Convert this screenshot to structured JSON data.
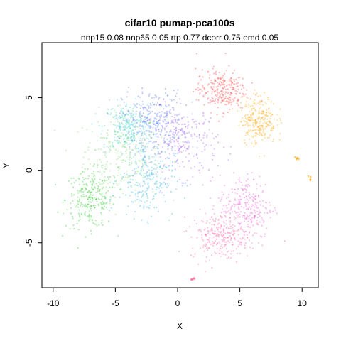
{
  "chart_data": {
    "type": "scatter",
    "title": "cifar10 pumap-pca100s",
    "subtitle": "nnp15 0.08 nnp65 0.05 rtp 0.77 dcorr 0.75 emd 0.05",
    "xlabel": "X",
    "ylabel": "Y",
    "xlim": [
      -10.9,
      11.3
    ],
    "ylim": [
      -8.1,
      8.8
    ],
    "xticks": [
      "-10",
      "-5",
      "0",
      "5",
      "10"
    ],
    "xtick_values": [
      -10,
      -5,
      0,
      5,
      10
    ],
    "yticks": [
      "-5",
      "0",
      "5"
    ],
    "ytick_values": [
      -5,
      0,
      5
    ],
    "grid": false,
    "legend": "none",
    "series_colors": [
      "#ff3b3b",
      "#ffa500",
      "#7fdc6e",
      "#28c828",
      "#3fd0c8",
      "#2ab5e8",
      "#4f6af0",
      "#a05af0",
      "#e850d0",
      "#ff5a9a"
    ],
    "clusters": [
      {
        "center": [
          -4.5,
          1.0
        ],
        "spread": [
          2.8,
          2.8
        ],
        "color": "#7fdc6e"
      },
      {
        "center": [
          -7.0,
          -2.0
        ],
        "spread": [
          1.8,
          1.8
        ],
        "color": "#28c828"
      },
      {
        "center": [
          -4.0,
          3.0
        ],
        "spread": [
          1.8,
          1.5
        ],
        "color": "#3fd0c8"
      },
      {
        "center": [
          -2.0,
          3.5
        ],
        "spread": [
          2.2,
          1.8
        ],
        "color": "#4f6af0"
      },
      {
        "center": [
          0.5,
          2.0
        ],
        "spread": [
          2.5,
          2.2
        ],
        "color": "#a05af0"
      },
      {
        "center": [
          -2.5,
          -0.5
        ],
        "spread": [
          2.0,
          2.5
        ],
        "color": "#2ab5e8"
      },
      {
        "center": [
          5.5,
          -2.5
        ],
        "spread": [
          2.0,
          2.0
        ],
        "color": "#e850d0"
      },
      {
        "center": [
          3.5,
          -4.5
        ],
        "spread": [
          2.2,
          1.5
        ],
        "color": "#ff5a9a"
      },
      {
        "center": [
          3.5,
          5.5
        ],
        "spread": [
          1.8,
          1.3
        ],
        "color": "#ff3b3b"
      },
      {
        "center": [
          6.5,
          3.5
        ],
        "spread": [
          1.3,
          1.5
        ],
        "color": "#ffa500"
      }
    ],
    "outlier_points": [
      {
        "x": 10.5,
        "y": -0.6,
        "color": "#ffa500"
      },
      {
        "x": 9.6,
        "y": 0.8,
        "color": "#ffa500"
      },
      {
        "x": 1.2,
        "y": -7.5,
        "color": "#ff5a9a"
      }
    ]
  }
}
